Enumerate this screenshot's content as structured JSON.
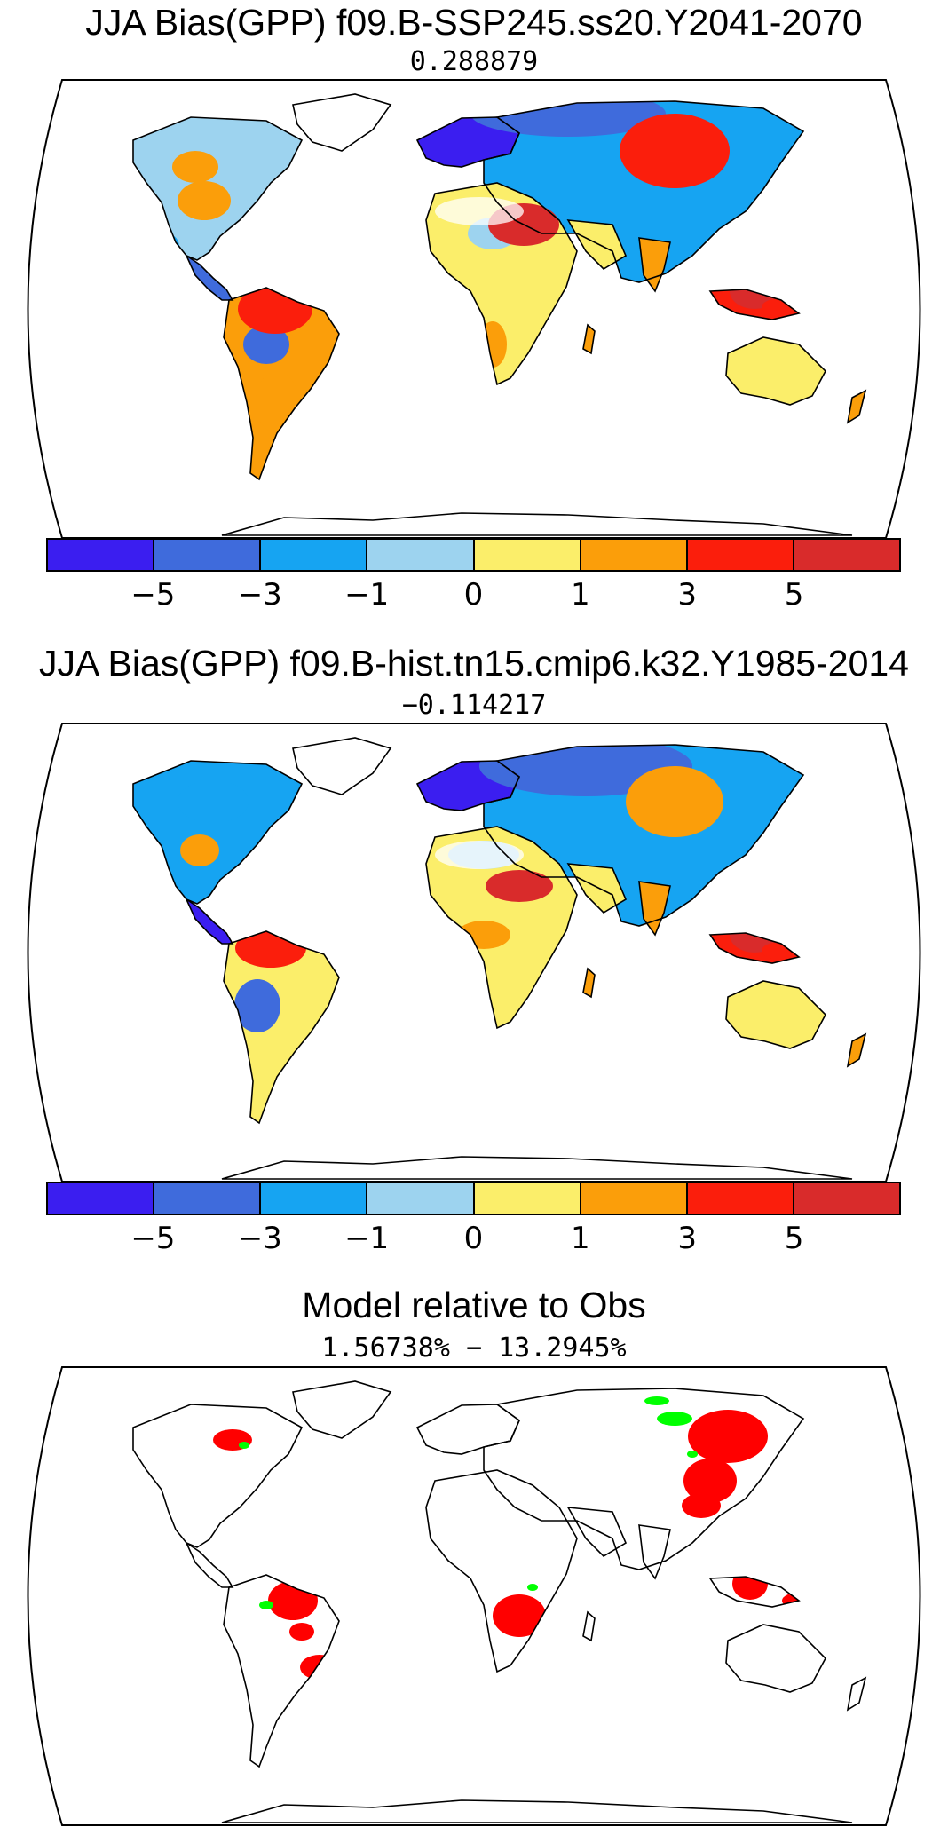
{
  "panels": [
    {
      "title": "JJA Bias(GPP) f09.B-SSP245.ss20.Y2041-2070",
      "subtitle": "0.288879",
      "map_kind": "ssp245"
    },
    {
      "title": "JJA Bias(GPP) f09.B-hist.tn15.cmip6.k32.Y1985-2014",
      "subtitle": "−0.114217",
      "map_kind": "hist"
    },
    {
      "title": "Model relative to Obs",
      "subtitle": "1.56738% − 13.2945%",
      "map_kind": "relative"
    }
  ],
  "colorbar": {
    "colors": [
      "#3b1ef0",
      "#3f6bdc",
      "#16a4f2",
      "#9dd3ef",
      "#fbee6a",
      "#fb9e0a",
      "#fb1e0c",
      "#d92b2b"
    ],
    "tick_labels": [
      "−5",
      "−3",
      "−1",
      "0",
      "1",
      "3",
      "5"
    ]
  },
  "relative_colors": {
    "worse": "#ff0000",
    "better": "#00ff00"
  }
}
